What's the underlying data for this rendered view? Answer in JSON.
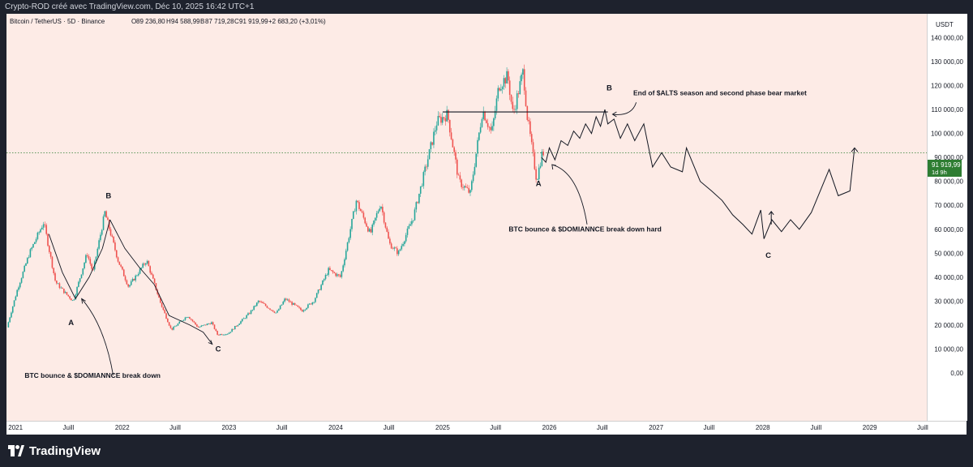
{
  "header": {
    "credit": "Crypto-ROD créé avec TradingView.com, Déc 10, 2025 16:42 UTC+1"
  },
  "legend": {
    "symbol": "Bitcoin / TetherUS · 5D · Binance",
    "open_label": "O",
    "open": "89 236,80",
    "high_label": "H",
    "high": "94 588,99",
    "low_label": "B",
    "low": "87 719,28",
    "close_label": "C",
    "close": "91 919,99",
    "change": "+2 683,20 (+3,01%)"
  },
  "price_axis": {
    "currency": "USDT",
    "current_price": "91 919,99",
    "countdown": "1d 9h"
  },
  "bottom": {
    "brand": "TradingView"
  },
  "colors": {
    "up": "#26a69a",
    "down": "#ef5350",
    "background": "#fdebe6",
    "accent_green": "#2e7d32",
    "ink": "#131722"
  },
  "chart_data": {
    "type": "line",
    "title": "",
    "xlabel": "",
    "ylabel": "",
    "ylim": [
      -20000,
      150000
    ],
    "y_ticks": [
      0,
      10000,
      20000,
      30000,
      40000,
      50000,
      60000,
      70000,
      80000,
      90000,
      100000,
      110000,
      120000,
      130000,
      140000
    ],
    "y_tick_labels": [
      "0,00",
      "10 000,00",
      "20 000,00",
      "30 000,00",
      "40 000,00",
      "50 000,00",
      "60 000,00",
      "70 000,00",
      "80 000,00",
      "90 000,00",
      "100 000,00",
      "110 000,00",
      "120 000,00",
      "130 000,00",
      "140 000,00"
    ],
    "x_range": [
      "2020-12-01",
      "2029-07-15"
    ],
    "x_ticks": [
      {
        "date": "2021-01-01",
        "label": "2021"
      },
      {
        "date": "2021-07-01",
        "label": "Juill"
      },
      {
        "date": "2022-01-01",
        "label": "2022"
      },
      {
        "date": "2022-07-01",
        "label": "Juill"
      },
      {
        "date": "2023-01-01",
        "label": "2023"
      },
      {
        "date": "2023-07-01",
        "label": "Juill"
      },
      {
        "date": "2024-01-01",
        "label": "2024"
      },
      {
        "date": "2024-07-01",
        "label": "Juill"
      },
      {
        "date": "2025-01-01",
        "label": "2025"
      },
      {
        "date": "2025-07-01",
        "label": "Juill"
      },
      {
        "date": "2026-01-01",
        "label": "2026"
      },
      {
        "date": "2026-07-01",
        "label": "Juill"
      },
      {
        "date": "2027-01-01",
        "label": "2027"
      },
      {
        "date": "2027-07-01",
        "label": "Juill"
      },
      {
        "date": "2028-01-01",
        "label": "2028"
      },
      {
        "date": "2028-07-01",
        "label": "Juill"
      },
      {
        "date": "2029-01-01",
        "label": "2029"
      },
      {
        "date": "2029-07-01",
        "label": "Juill"
      }
    ],
    "grid": false,
    "current_price_value": 91920,
    "series": [
      {
        "role": "price",
        "points": [
          [
            "2020-12-05",
            19000
          ],
          [
            "2021-01-10",
            35000
          ],
          [
            "2021-02-20",
            50000
          ],
          [
            "2021-04-10",
            63000
          ],
          [
            "2021-05-20",
            38000
          ],
          [
            "2021-06-25",
            33000
          ],
          [
            "2021-07-20",
            30000
          ],
          [
            "2021-09-05",
            50000
          ],
          [
            "2021-09-25",
            42000
          ],
          [
            "2021-11-05",
            67000
          ],
          [
            "2021-12-20",
            47000
          ],
          [
            "2022-01-25",
            36000
          ],
          [
            "2022-03-28",
            47000
          ],
          [
            "2022-05-15",
            29000
          ],
          [
            "2022-06-20",
            18000
          ],
          [
            "2022-08-15",
            24000
          ],
          [
            "2022-09-20",
            19000
          ],
          [
            "2022-11-05",
            21000
          ],
          [
            "2022-11-25",
            16000
          ],
          [
            "2023-01-01",
            16500
          ],
          [
            "2023-03-15",
            25000
          ],
          [
            "2023-04-15",
            30000
          ],
          [
            "2023-06-15",
            25000
          ],
          [
            "2023-07-15",
            31000
          ],
          [
            "2023-09-10",
            26000
          ],
          [
            "2023-10-20",
            30000
          ],
          [
            "2023-12-10",
            43000
          ],
          [
            "2024-01-20",
            40000
          ],
          [
            "2024-03-14",
            72000
          ],
          [
            "2024-05-01",
            58000
          ],
          [
            "2024-06-05",
            71000
          ],
          [
            "2024-07-05",
            54000
          ],
          [
            "2024-08-05",
            50000
          ],
          [
            "2024-09-25",
            65000
          ],
          [
            "2024-11-15",
            90000
          ],
          [
            "2024-12-15",
            105000
          ],
          [
            "2025-01-20",
            108000
          ],
          [
            "2025-02-28",
            80000
          ],
          [
            "2025-04-08",
            75000
          ],
          [
            "2025-05-20",
            110000
          ],
          [
            "2025-06-20",
            100000
          ],
          [
            "2025-07-15",
            120000
          ],
          [
            "2025-08-14",
            124000
          ],
          [
            "2025-09-01",
            108000
          ],
          [
            "2025-10-06",
            126000
          ],
          [
            "2025-10-20",
            107000
          ],
          [
            "2025-11-21",
            80500
          ],
          [
            "2025-12-10",
            91920
          ]
        ]
      },
      {
        "role": "projection",
        "points": [
          [
            "2025-12-05",
            90000
          ],
          [
            "2025-12-20",
            88000
          ],
          [
            "2026-01-01",
            94000
          ],
          [
            "2026-01-20",
            89000
          ],
          [
            "2026-02-10",
            97000
          ],
          [
            "2026-03-05",
            95000
          ],
          [
            "2026-03-25",
            101000
          ],
          [
            "2026-04-15",
            98000
          ],
          [
            "2026-05-05",
            104000
          ],
          [
            "2026-05-25",
            100000
          ],
          [
            "2026-06-10",
            107000
          ],
          [
            "2026-06-25",
            103000
          ],
          [
            "2026-07-10",
            110000
          ],
          [
            "2026-07-20",
            104000
          ],
          [
            "2026-08-10",
            106000
          ],
          [
            "2026-09-01",
            98000
          ],
          [
            "2026-09-25",
            104000
          ],
          [
            "2026-10-20",
            97000
          ],
          [
            "2026-11-20",
            104000
          ],
          [
            "2026-12-20",
            86000
          ],
          [
            "2027-01-20",
            92000
          ],
          [
            "2027-02-20",
            86000
          ],
          [
            "2027-04-01",
            84000
          ],
          [
            "2027-04-15",
            94000
          ],
          [
            "2027-06-01",
            80000
          ],
          [
            "2027-07-10",
            76000
          ],
          [
            "2027-08-15",
            72000
          ],
          [
            "2027-09-20",
            66000
          ],
          [
            "2027-10-25",
            62000
          ],
          [
            "2027-11-25",
            58000
          ],
          [
            "2027-12-25",
            68000
          ],
          [
            "2028-01-05",
            56000
          ],
          [
            "2028-02-01",
            64000
          ],
          [
            "2028-03-05",
            59000
          ],
          [
            "2028-04-05",
            64000
          ],
          [
            "2028-05-05",
            60000
          ],
          [
            "2028-06-15",
            67000
          ],
          [
            "2028-08-15",
            85000
          ],
          [
            "2028-09-15",
            74000
          ],
          [
            "2028-10-25",
            76000
          ],
          [
            "2028-11-10",
            94000
          ]
        ]
      }
    ],
    "resistance_line": {
      "from": "2025-01-01",
      "to": "2026-07-20",
      "value": 109000
    },
    "annotations": [
      {
        "text": "A",
        "date": "2021-07-10",
        "value": 20000
      },
      {
        "text": "B",
        "date": "2021-11-15",
        "value": 73000
      },
      {
        "text": "C",
        "date": "2022-11-25",
        "value": 9000
      },
      {
        "text": "BTC bounce & $DOMIANNCE break down",
        "date": "2021-02-01",
        "value": -2000
      },
      {
        "text": "A",
        "date": "2025-11-25",
        "value": 78000
      },
      {
        "text": "B",
        "date": "2026-07-25",
        "value": 118000
      },
      {
        "text": "C",
        "date": "2028-01-20",
        "value": 48000
      },
      {
        "text": "End of $ALTS season and second phase bear market",
        "date": "2026-10-15",
        "value": 116000
      },
      {
        "text": "BTC bounce & $DOMIANNCE break down hard",
        "date": "2025-08-15",
        "value": 59000
      }
    ]
  }
}
